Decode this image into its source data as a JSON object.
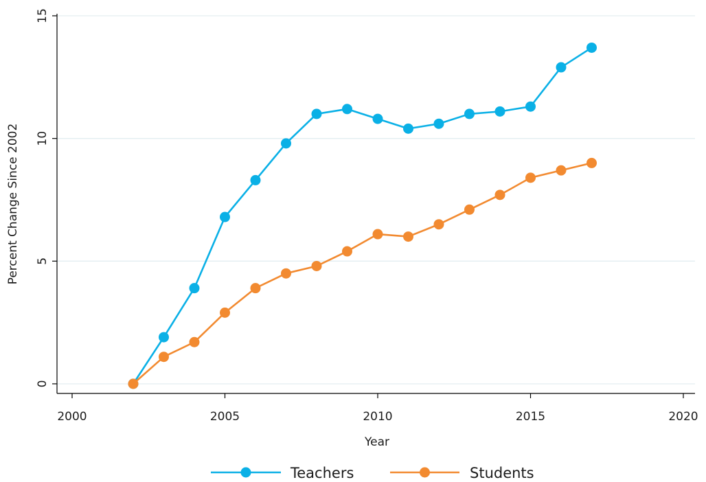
{
  "chart_data": {
    "type": "line",
    "title": "",
    "xlabel": "Year",
    "ylabel": "Percent Change Since 2002",
    "xlim": [
      2000,
      2020
    ],
    "ylim": [
      0,
      15
    ],
    "xticks": [
      "2000",
      "2005",
      "2010",
      "2015",
      "2020"
    ],
    "yticks": [
      "0",
      "5",
      "10",
      "15"
    ],
    "grid": "horizontal",
    "legend_position": "bottom",
    "x": [
      2002,
      2003,
      2004,
      2005,
      2006,
      2007,
      2008,
      2009,
      2010,
      2011,
      2012,
      2013,
      2014,
      2015,
      2016,
      2017
    ],
    "series": [
      {
        "name": "Teachers",
        "color": "#0ab0e6",
        "values": [
          0.0,
          1.9,
          3.9,
          6.8,
          8.3,
          9.8,
          11.0,
          11.2,
          10.8,
          10.4,
          10.6,
          11.0,
          11.1,
          11.3,
          12.9,
          13.7
        ]
      },
      {
        "name": "Students",
        "color": "#f28a30",
        "values": [
          0.0,
          1.1,
          1.7,
          2.9,
          3.9,
          4.5,
          4.8,
          5.4,
          6.1,
          6.0,
          6.5,
          7.1,
          7.7,
          8.4,
          8.7,
          9.0
        ]
      }
    ]
  }
}
